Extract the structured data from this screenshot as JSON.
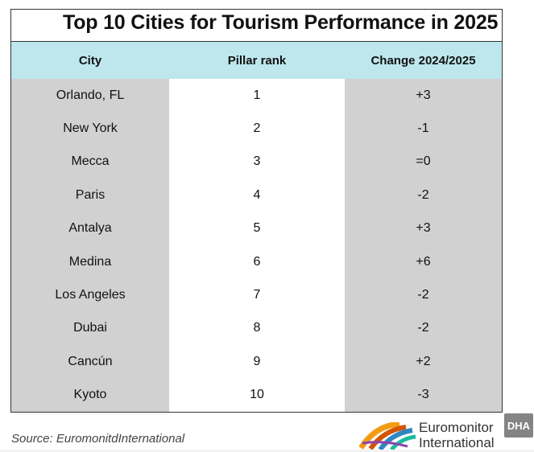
{
  "title": "Top 10 Cities for Tourism Performance in 2025",
  "table": {
    "headers": [
      "City",
      "Pillar rank",
      "Change 2024/2025"
    ],
    "rows": [
      [
        "Orlando, FL",
        "1",
        "+3"
      ],
      [
        "New York",
        "2",
        "-1"
      ],
      [
        "Mecca",
        "3",
        "=0"
      ],
      [
        "Paris",
        "4",
        "-2"
      ],
      [
        "Antalya",
        "5",
        "+3"
      ],
      [
        "Medina",
        "6",
        "+6"
      ],
      [
        "Los Angeles",
        "7",
        "-2"
      ],
      [
        "Dubai",
        "8",
        "-2"
      ],
      [
        "Cancún",
        "9",
        "+2"
      ],
      [
        "Kyoto",
        "10",
        "-3"
      ]
    ]
  },
  "source": "Source: EuromonitdInternational",
  "logo": {
    "line1": "Euromonitor",
    "line2": "International"
  },
  "watermark": "DHA",
  "colors": {
    "header_bg": "#bde7ec",
    "shaded_col": "#d1d1d1"
  }
}
